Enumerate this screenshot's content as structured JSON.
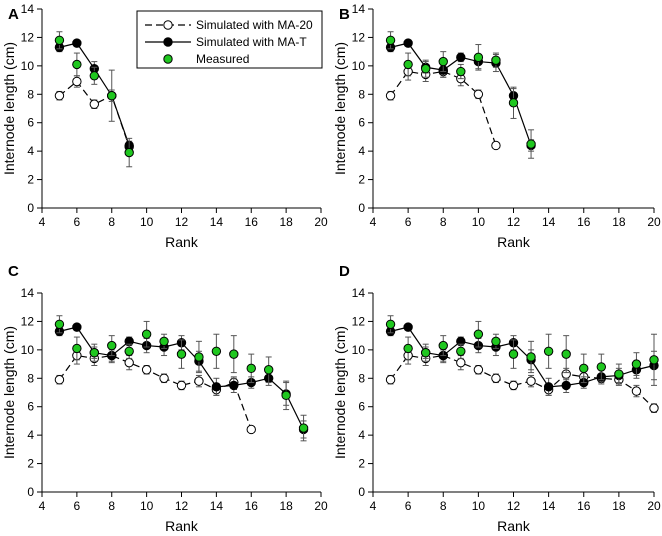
{
  "figure": {
    "colors": {
      "measured": "#1fc71f",
      "simulated_t": "#000000",
      "simulated_20": "#ffffff",
      "line": "#000000",
      "error": "#555555"
    },
    "legend": [
      {
        "label": "Simulated with MA-20",
        "key": "ma20"
      },
      {
        "label": "Simulated with MA-T",
        "key": "mat"
      },
      {
        "label": "Measured",
        "key": "meas"
      }
    ]
  },
  "chart_data": [
    {
      "type": "line",
      "panel": "A",
      "xlabel": "Rank",
      "ylabel": "Internode length (cm)",
      "xlim": [
        4,
        20
      ],
      "ylim": [
        0,
        14
      ],
      "xticks": [
        4,
        6,
        8,
        10,
        12,
        14,
        16,
        18,
        20
      ],
      "yticks": [
        0,
        2,
        4,
        6,
        8,
        10,
        12,
        14
      ],
      "series": [
        {
          "name": "Simulated with MA-20",
          "key": "ma20",
          "x": [
            5,
            6,
            7,
            8,
            9
          ],
          "y": [
            7.9,
            8.9,
            7.3,
            7.9,
            4.3
          ],
          "err": [
            0.3,
            0.4,
            0.3,
            0.2,
            0.2
          ]
        },
        {
          "name": "Simulated with MA-T",
          "key": "mat",
          "x": [
            5,
            6,
            7,
            8,
            9
          ],
          "y": [
            11.3,
            11.6,
            9.8,
            7.9,
            4.4
          ],
          "err": [
            0.3,
            0.2,
            0.5,
            0.4,
            0.3
          ]
        },
        {
          "name": "Measured",
          "key": "meas",
          "x": [
            5,
            6,
            7,
            8,
            9
          ],
          "y": [
            11.8,
            10.1,
            9.3,
            7.9,
            3.9
          ],
          "err": [
            0.6,
            0.8,
            0.6,
            1.8,
            1.0
          ]
        }
      ]
    },
    {
      "type": "line",
      "panel": "B",
      "xlabel": "Rank",
      "ylabel": "Internode length (cm)",
      "xlim": [
        4,
        20
      ],
      "ylim": [
        0,
        14
      ],
      "xticks": [
        4,
        6,
        8,
        10,
        12,
        14,
        16,
        18,
        20
      ],
      "yticks": [
        0,
        2,
        4,
        6,
        8,
        10,
        12,
        14
      ],
      "series": [
        {
          "name": "Simulated with MA-20",
          "key": "ma20",
          "x": [
            5,
            6,
            7,
            8,
            9,
            10,
            11
          ],
          "y": [
            7.9,
            9.6,
            9.4,
            9.6,
            9.1,
            8.0,
            4.4
          ],
          "err": [
            0.3,
            0.6,
            0.5,
            0.4,
            0.5,
            0.3,
            0.2
          ]
        },
        {
          "name": "Simulated with MA-T",
          "key": "mat",
          "x": [
            5,
            6,
            7,
            8,
            9,
            10,
            11,
            12,
            13
          ],
          "y": [
            11.3,
            11.6,
            9.9,
            9.7,
            10.6,
            10.3,
            10.2,
            7.9,
            4.4
          ],
          "err": [
            0.3,
            0.2,
            0.4,
            0.5,
            0.3,
            0.5,
            0.6,
            0.5,
            0.4
          ]
        },
        {
          "name": "Measured",
          "key": "meas",
          "x": [
            5,
            6,
            7,
            8,
            9,
            10,
            11,
            12,
            13
          ],
          "y": [
            11.8,
            10.1,
            9.8,
            10.3,
            9.6,
            10.6,
            10.4,
            7.4,
            4.5
          ],
          "err": [
            0.6,
            0.8,
            0.6,
            0.7,
            0.5,
            0.9,
            0.5,
            1.1,
            1.0
          ]
        }
      ]
    },
    {
      "type": "line",
      "panel": "C",
      "xlabel": "Rank",
      "ylabel": "Internode length (cm)",
      "xlim": [
        4,
        20
      ],
      "ylim": [
        0,
        14
      ],
      "xticks": [
        4,
        6,
        8,
        10,
        12,
        14,
        16,
        18,
        20
      ],
      "yticks": [
        0,
        2,
        4,
        6,
        8,
        10,
        12,
        14
      ],
      "series": [
        {
          "name": "Simulated with MA-20",
          "key": "ma20",
          "x": [
            5,
            6,
            7,
            8,
            9,
            10,
            11,
            12,
            13,
            14,
            15,
            16
          ],
          "y": [
            7.9,
            9.6,
            9.4,
            9.6,
            9.1,
            8.6,
            8.0,
            7.5,
            7.8,
            7.2,
            7.7,
            4.4
          ],
          "err": [
            0.3,
            0.6,
            0.5,
            0.4,
            0.5,
            0.3,
            0.3,
            0.3,
            0.4,
            0.4,
            0.4,
            0.2
          ]
        },
        {
          "name": "Simulated with MA-T",
          "key": "mat",
          "x": [
            5,
            6,
            7,
            8,
            9,
            10,
            11,
            12,
            13,
            14,
            15,
            16,
            17,
            18,
            19
          ],
          "y": [
            11.3,
            11.6,
            9.8,
            9.6,
            10.6,
            10.3,
            10.2,
            10.5,
            9.2,
            7.4,
            7.5,
            7.7,
            8.0,
            6.9,
            4.4
          ],
          "err": [
            0.3,
            0.2,
            0.4,
            0.5,
            0.3,
            0.5,
            0.6,
            0.5,
            0.7,
            0.6,
            0.5,
            0.4,
            0.5,
            0.8,
            0.6
          ]
        },
        {
          "name": "Measured",
          "key": "meas",
          "x": [
            5,
            6,
            7,
            8,
            9,
            10,
            11,
            12,
            13,
            14,
            15,
            16,
            17,
            18,
            19
          ],
          "y": [
            11.8,
            10.1,
            9.8,
            10.3,
            9.9,
            11.1,
            10.6,
            9.7,
            9.5,
            9.9,
            9.7,
            8.7,
            8.6,
            6.8,
            4.5
          ],
          "err": [
            0.6,
            0.8,
            0.6,
            0.7,
            0.5,
            0.9,
            0.5,
            1.0,
            1.1,
            1.2,
            1.3,
            1.0,
            0.9,
            1.0,
            0.9
          ]
        }
      ]
    },
    {
      "type": "line",
      "panel": "D",
      "xlabel": "Rank",
      "ylabel": "Internode length (cm)",
      "xlim": [
        4,
        20
      ],
      "ylim": [
        0,
        14
      ],
      "xticks": [
        4,
        6,
        8,
        10,
        12,
        14,
        16,
        18,
        20
      ],
      "yticks": [
        0,
        2,
        4,
        6,
        8,
        10,
        12,
        14
      ],
      "series": [
        {
          "name": "Simulated with MA-20",
          "key": "ma20",
          "x": [
            5,
            6,
            7,
            8,
            9,
            10,
            11,
            12,
            13,
            14,
            15,
            16,
            17,
            18,
            19,
            20
          ],
          "y": [
            7.9,
            9.6,
            9.4,
            9.6,
            9.1,
            8.6,
            8.0,
            7.5,
            7.8,
            7.2,
            8.3,
            8.1,
            8.0,
            7.9,
            7.1,
            5.9
          ],
          "err": [
            0.3,
            0.6,
            0.5,
            0.4,
            0.5,
            0.3,
            0.3,
            0.3,
            0.4,
            0.4,
            0.4,
            0.4,
            0.3,
            0.4,
            0.4,
            0.3
          ]
        },
        {
          "name": "Simulated with MA-T",
          "key": "mat",
          "x": [
            5,
            6,
            7,
            8,
            9,
            10,
            11,
            12,
            13,
            14,
            15,
            16,
            17,
            18,
            19,
            20
          ],
          "y": [
            11.3,
            11.6,
            9.8,
            9.6,
            10.6,
            10.3,
            10.2,
            10.5,
            9.3,
            7.4,
            7.5,
            7.7,
            8.1,
            8.2,
            8.6,
            8.9
          ],
          "err": [
            0.3,
            0.2,
            0.4,
            0.5,
            0.3,
            0.5,
            0.6,
            0.5,
            0.7,
            0.6,
            0.5,
            0.4,
            0.5,
            0.5,
            0.6,
            1.0
          ]
        },
        {
          "name": "Measured",
          "key": "meas",
          "x": [
            5,
            6,
            7,
            8,
            9,
            10,
            11,
            12,
            13,
            14,
            15,
            16,
            17,
            18,
            19,
            20
          ],
          "y": [
            11.8,
            10.1,
            9.8,
            10.3,
            9.9,
            11.1,
            10.6,
            9.7,
            9.5,
            9.9,
            9.7,
            8.7,
            8.8,
            8.3,
            9.0,
            9.3
          ],
          "err": [
            0.6,
            0.8,
            0.6,
            0.7,
            0.5,
            0.9,
            0.5,
            1.0,
            1.1,
            1.2,
            1.3,
            1.0,
            0.9,
            0.7,
            0.8,
            1.8
          ]
        }
      ]
    }
  ]
}
